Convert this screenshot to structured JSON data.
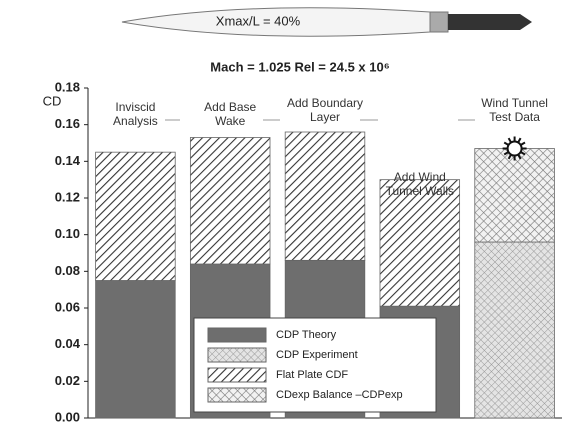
{
  "chart_data": {
    "type": "stacked_bar",
    "header_label": "Xmax/L = 40%",
    "title": "Mach = 1.025   Rel = 24.5 x 10⁶",
    "ylabel": "CD",
    "categories": [
      "Inviscid\nAnalysis",
      "Add Base\nWake",
      "Add Boundary\nLayer",
      "Add Wind\nTunnel Walls",
      "Wind Tunnel\nTest Data"
    ],
    "series": [
      {
        "name": "CDP Theory",
        "color": "#6e6e6e",
        "pattern": "solid",
        "values": [
          0.075,
          0.084,
          0.086,
          0.061,
          null
        ]
      },
      {
        "name": "CDP  Experiment",
        "color": "#9a9a9a",
        "pattern": "dots",
        "values": [
          null,
          null,
          null,
          null,
          0.096
        ]
      },
      {
        "name": "Flat Plate CDF",
        "color": "#333333",
        "pattern": "diagonal",
        "values": [
          0.07,
          0.069,
          0.07,
          0.069,
          null
        ]
      },
      {
        "name": "CDexp Balance –CDPexp",
        "color": "#777777",
        "pattern": "cross",
        "values": [
          null,
          null,
          null,
          null,
          0.051
        ]
      }
    ],
    "ylim": [
      0,
      0.18
    ],
    "yticks": [
      {
        "value": 0,
        "label": "0.00"
      },
      0.02,
      0.04,
      0.06,
      0.08,
      {
        "value": 0.1,
        "label": "0.10"
      },
      0.12,
      0.14,
      0.16,
      0.18
    ]
  }
}
